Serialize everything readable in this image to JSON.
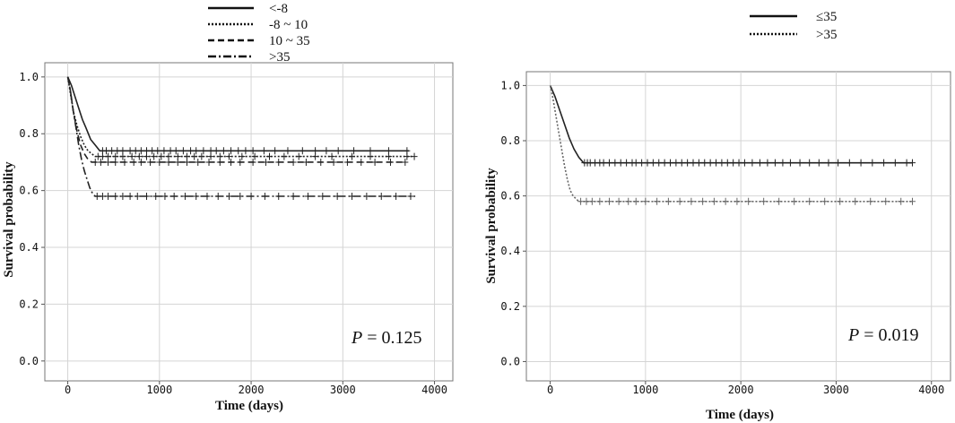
{
  "chart_data": [
    {
      "type": "line",
      "subtype": "kaplan-meier",
      "title": "",
      "xlabel": "Time (days)",
      "ylabel": "Survival probability",
      "xlim": [
        -250,
        4200
      ],
      "ylim": [
        -0.07,
        1.05
      ],
      "xticks": [
        0,
        1000,
        2000,
        3000,
        4000
      ],
      "yticks": [
        0.0,
        0.2,
        0.4,
        0.6,
        0.8,
        1.0
      ],
      "ytick_labels": [
        "0.0",
        "0.2",
        "0.4",
        "0.6",
        "0.8",
        "1.0"
      ],
      "grid": true,
      "legend_position": "top-center",
      "annotation": {
        "p_label": "P",
        "p_text": "= 0.125"
      },
      "series": [
        {
          "name": "<-8",
          "dash": "none",
          "color": "#222222",
          "x": [
            0,
            40,
            80,
            120,
            160,
            200,
            250,
            300,
            350,
            3720
          ],
          "y": [
            1.0,
            0.97,
            0.93,
            0.89,
            0.85,
            0.82,
            0.78,
            0.76,
            0.74,
            0.74
          ],
          "censor_x": [
            380,
            420,
            480,
            540,
            600,
            680,
            740,
            800,
            860,
            920,
            980,
            1050,
            1120,
            1180,
            1260,
            1340,
            1400,
            1480,
            1560,
            1620,
            1700,
            1780,
            1860,
            1940,
            2020,
            2140,
            2260,
            2400,
            2560,
            2700,
            2820,
            2950,
            3120,
            3300,
            3500,
            3700
          ]
        },
        {
          "name": "-8 ~ 10",
          "dash": "2,2",
          "color": "#222222",
          "x": [
            0,
            30,
            60,
            100,
            140,
            180,
            220,
            260,
            300,
            3780
          ],
          "y": [
            1.0,
            0.94,
            0.88,
            0.83,
            0.79,
            0.76,
            0.74,
            0.73,
            0.72,
            0.72
          ],
          "censor_x": [
            330,
            380,
            440,
            520,
            600,
            700,
            780,
            860,
            940,
            1020,
            1100,
            1200,
            1300,
            1380,
            1460,
            1560,
            1660,
            1760,
            1900,
            2040,
            2200,
            2360,
            2520,
            2700,
            2880,
            3100,
            3300,
            3500,
            3700,
            3780
          ]
        },
        {
          "name": "10 ~ 35",
          "dash": "7,4",
          "color": "#222222",
          "x": [
            0,
            30,
            60,
            100,
            140,
            180,
            220,
            260,
            3680
          ],
          "y": [
            1.0,
            0.95,
            0.88,
            0.81,
            0.76,
            0.73,
            0.71,
            0.7,
            0.7
          ],
          "censor_x": [
            300,
            360,
            440,
            520,
            620,
            720,
            800,
            900,
            1000,
            1100,
            1200,
            1300,
            1420,
            1540,
            1660,
            1780,
            1880,
            2020,
            2160,
            2300,
            2460,
            2600,
            2760,
            2900,
            3050,
            3200,
            3350,
            3520,
            3680
          ]
        },
        {
          "name": ">35",
          "dash": "9,3,2,3",
          "color": "#222222",
          "x": [
            0,
            30,
            60,
            90,
            120,
            150,
            180,
            210,
            240,
            270,
            300,
            3790
          ],
          "y": [
            1.0,
            0.95,
            0.88,
            0.82,
            0.76,
            0.71,
            0.67,
            0.64,
            0.61,
            0.59,
            0.58,
            0.58
          ],
          "censor_x": [
            320,
            380,
            440,
            520,
            600,
            680,
            760,
            860,
            960,
            1060,
            1160,
            1280,
            1400,
            1520,
            1640,
            1760,
            1880,
            2000,
            2150,
            2300,
            2460,
            2620,
            2780,
            2940,
            3100,
            3260,
            3420,
            3580,
            3740
          ]
        }
      ]
    },
    {
      "type": "line",
      "subtype": "kaplan-meier",
      "title": "",
      "xlabel": "Time (days)",
      "ylabel": "Survival probability",
      "xlim": [
        -250,
        4200
      ],
      "ylim": [
        -0.07,
        1.05
      ],
      "xticks": [
        0,
        1000,
        2000,
        3000,
        4000
      ],
      "yticks": [
        0.0,
        0.2,
        0.4,
        0.6,
        0.8,
        1.0
      ],
      "ytick_labels": [
        "0.0",
        "0.2",
        "0.4",
        "0.6",
        "0.8",
        "1.0"
      ],
      "grid": true,
      "legend_position": "top-right",
      "annotation": {
        "p_label": "P",
        "p_text": "= 0.019"
      },
      "series": [
        {
          "name": "≤35",
          "dash": "none",
          "color": "#222222",
          "x": [
            0,
            50,
            100,
            150,
            200,
            250,
            300,
            350,
            3800
          ],
          "y": [
            1.0,
            0.96,
            0.91,
            0.86,
            0.81,
            0.77,
            0.74,
            0.72,
            0.72
          ],
          "censor_x": [
            360,
            390,
            420,
            470,
            520,
            560,
            620,
            680,
            740,
            800,
            860,
            900,
            960,
            1020,
            1080,
            1140,
            1200,
            1260,
            1320,
            1380,
            1440,
            1500,
            1560,
            1620,
            1680,
            1740,
            1800,
            1860,
            1920,
            1980,
            2040,
            2120,
            2200,
            2280,
            2360,
            2440,
            2520,
            2620,
            2720,
            2820,
            2920,
            3020,
            3140,
            3260,
            3380,
            3500,
            3620,
            3740,
            3800
          ]
        },
        {
          "name": ">35",
          "dash": "2,2",
          "color": "#666666",
          "x": [
            0,
            30,
            60,
            90,
            120,
            150,
            180,
            210,
            240,
            270,
            300,
            3800
          ],
          "y": [
            1.0,
            0.95,
            0.89,
            0.83,
            0.77,
            0.71,
            0.66,
            0.62,
            0.6,
            0.59,
            0.58,
            0.58
          ],
          "censor_x": [
            320,
            380,
            440,
            520,
            620,
            720,
            820,
            900,
            1000,
            1120,
            1240,
            1360,
            1480,
            1600,
            1720,
            1840,
            1960,
            2080,
            2240,
            2400,
            2560,
            2720,
            2880,
            3040,
            3200,
            3360,
            3520,
            3680,
            3800
          ]
        }
      ]
    }
  ]
}
